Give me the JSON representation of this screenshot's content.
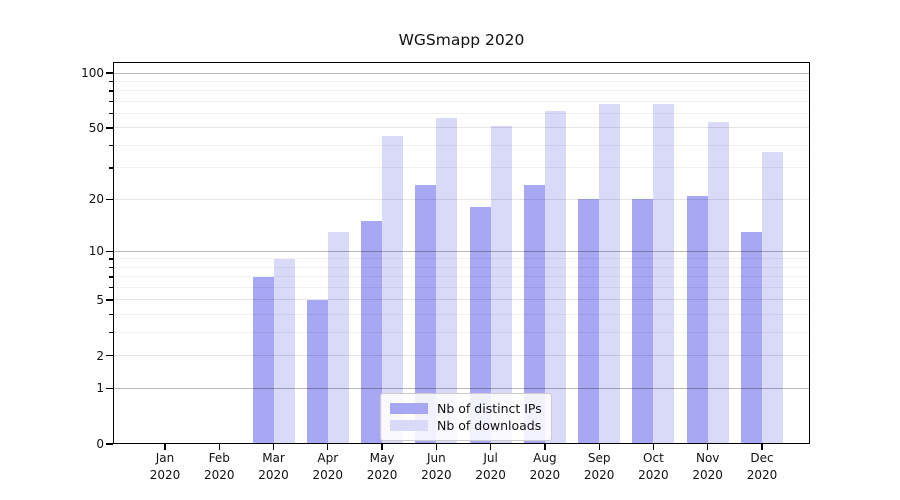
{
  "chart_data": {
    "type": "bar",
    "title": "WGSmapp 2020",
    "categories": [
      {
        "month": "Jan",
        "year": "2020"
      },
      {
        "month": "Feb",
        "year": "2020"
      },
      {
        "month": "Mar",
        "year": "2020"
      },
      {
        "month": "Apr",
        "year": "2020"
      },
      {
        "month": "May",
        "year": "2020"
      },
      {
        "month": "Jun",
        "year": "2020"
      },
      {
        "month": "Jul",
        "year": "2020"
      },
      {
        "month": "Aug",
        "year": "2020"
      },
      {
        "month": "Sep",
        "year": "2020"
      },
      {
        "month": "Oct",
        "year": "2020"
      },
      {
        "month": "Nov",
        "year": "2020"
      },
      {
        "month": "Dec",
        "year": "2020"
      }
    ],
    "series": [
      {
        "name": "Nb of distinct IPs",
        "color": "#a7a7f3",
        "values": [
          0,
          0,
          7,
          5,
          15,
          24,
          18,
          24,
          20,
          20,
          21,
          13
        ]
      },
      {
        "name": "Nb of downloads",
        "color": "#d9d9f8",
        "values": [
          0,
          0,
          9,
          13,
          45,
          57,
          51,
          62,
          68,
          68,
          54,
          37
        ]
      }
    ],
    "y_axis": {
      "scale": "log1p",
      "ticks": [
        0,
        1,
        2,
        5,
        10,
        20,
        50,
        100
      ],
      "minor_ticks": [
        3,
        4,
        6,
        7,
        8,
        9,
        30,
        40,
        60,
        70,
        80,
        90
      ],
      "ylim": [
        0,
        115
      ]
    },
    "xlabel": "",
    "ylabel": "",
    "grid": true,
    "legend_position": "lower center"
  }
}
